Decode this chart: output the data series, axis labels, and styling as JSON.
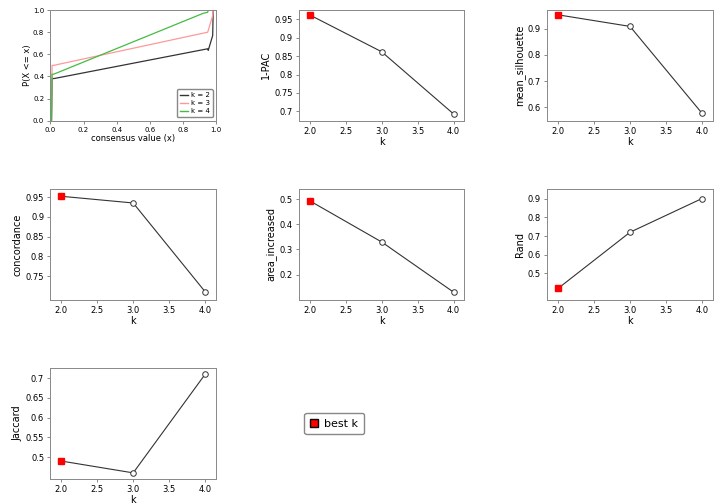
{
  "ecdf": {
    "k2": {
      "color": "#333333",
      "label": "k = 2"
    },
    "k3": {
      "color": "#ff9999",
      "label": "k = 3"
    },
    "k4": {
      "color": "#44bb44",
      "label": "k = 4"
    }
  },
  "pac": {
    "k": [
      2,
      3,
      4
    ],
    "values": [
      0.962,
      0.862,
      0.693
    ],
    "best_k_idx": 0,
    "yticks": [
      0.7,
      0.75,
      0.8,
      0.85,
      0.9,
      0.95
    ],
    "ylim": [
      0.675,
      0.975
    ]
  },
  "mean_silhouette": {
    "k": [
      2,
      3,
      4
    ],
    "values": [
      0.952,
      0.908,
      0.578
    ],
    "best_k_idx": 0,
    "yticks": [
      0.6,
      0.7,
      0.8,
      0.9
    ],
    "ylim": [
      0.55,
      0.97
    ]
  },
  "concordance": {
    "k": [
      2,
      3,
      4
    ],
    "values": [
      0.952,
      0.935,
      0.71
    ],
    "best_k_idx": 0,
    "yticks": [
      0.75,
      0.8,
      0.85,
      0.9,
      0.95
    ],
    "ylim": [
      0.69,
      0.97
    ]
  },
  "area_increased": {
    "k": [
      2,
      3,
      4
    ],
    "values": [
      0.494,
      0.33,
      0.13
    ],
    "best_k_idx": 0,
    "yticks": [
      0.2,
      0.3,
      0.4,
      0.5
    ],
    "ylim": [
      0.1,
      0.54
    ]
  },
  "rand": {
    "k": [
      2,
      3,
      4
    ],
    "values": [
      0.42,
      0.72,
      0.9
    ],
    "best_k_idx": 0,
    "yticks": [
      0.5,
      0.6,
      0.7,
      0.8,
      0.9
    ],
    "ylim": [
      0.36,
      0.95
    ]
  },
  "jaccard": {
    "k": [
      2,
      3,
      4
    ],
    "values": [
      0.49,
      0.46,
      0.71
    ],
    "best_k_idx": 0,
    "yticks": [
      0.5,
      0.55,
      0.6,
      0.65,
      0.7
    ],
    "ylim": [
      0.445,
      0.725
    ]
  },
  "colors": {
    "line": "#333333",
    "best_dot": "red",
    "bg": "white"
  },
  "xticks": [
    2.0,
    2.5,
    3.0,
    3.5,
    4.0
  ],
  "xlim": [
    1.85,
    4.15
  ]
}
